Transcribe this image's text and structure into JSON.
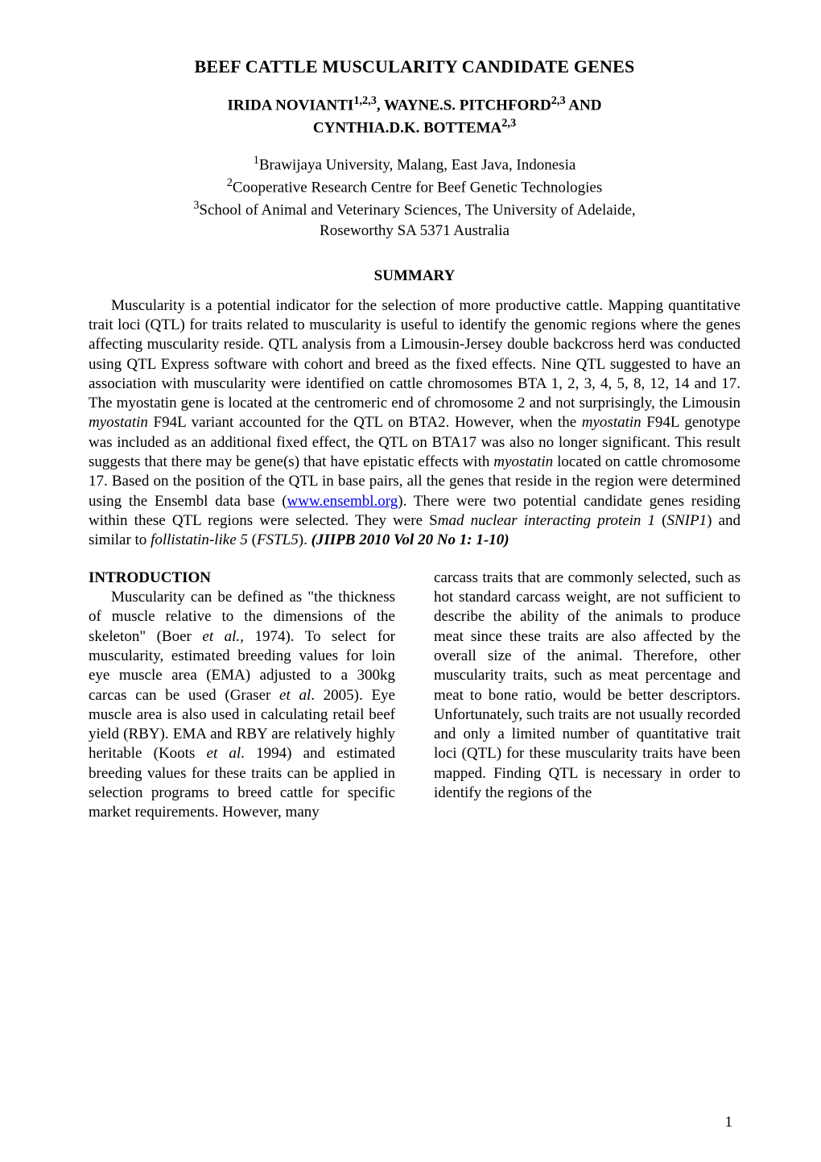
{
  "title": "BEEF CATTLE MUSCULARITY CANDIDATE GENES",
  "authors_line1_pre": "IRIDA NOVIANTI",
  "authors_line1_sup": "1,2,3",
  "authors_line1_mid": ", WAYNE.S. PITCHFORD",
  "authors_line1_sup2": "2,3",
  "authors_line1_post": " AND",
  "authors_line2_pre": "CYNTHIA.D.K. BOTTEMA",
  "authors_line2_sup": "2,3",
  "aff1_sup": "1",
  "aff1_text": "Brawijaya University, Malang, East Java, Indonesia",
  "aff2_sup": "2",
  "aff2_text": "Cooperative Research Centre for Beef Genetic Technologies",
  "aff3_sup": "3",
  "aff3_text": "School of Animal and Veterinary Sciences, The University of Adelaide,",
  "aff4_text": "Roseworthy SA 5371 Australia",
  "summary_heading": "SUMMARY",
  "abstract_1": "Muscularity is a potential indicator for the selection of more productive cattle. Mapping quantitative trait loci (QTL) for traits related to muscularity is useful to identify the genomic regions where the genes affecting muscularity reside. QTL analysis from a Limousin-Jersey double backcross herd was conducted using QTL Express software with cohort and breed as the fixed effects. Nine QTL suggested to have an association with muscularity were identified on cattle chromosomes BTA 1, 2, 3, 4, 5, 8, 12, 14 and 17. The myostatin gene is located at the centromeric end of chromosome 2 and not surprisingly, the Limousin ",
  "abstract_myo1": "myostatin",
  "abstract_2": " F94L variant accounted for the QTL on BTA2. However, when the ",
  "abstract_myo2": "myostatin",
  "abstract_3": " F94L genotype was included as an additional fixed effect, the QTL on BTA17 was also no longer significant. This result suggests that there may be gene(s) that have epistatic effects with ",
  "abstract_myo3": "myostatin",
  "abstract_4": " located on cattle chromosome 17. Based on the position of the QTL in base pairs, all the genes that reside in the region were determined using the Ensembl data base (",
  "abstract_link": "www.ensembl.org",
  "abstract_5": "). There were two potential candidate genes residing within these QTL regions were selected. They were S",
  "abstract_snip_pre": "mad nuclear interacting protein 1",
  "abstract_6": " (",
  "abstract_snip": "SNIP1",
  "abstract_7": ") and similar to ",
  "abstract_fstl_pre": "follistatin-like 5",
  "abstract_8": " (",
  "abstract_fstl": "FSTL5",
  "abstract_9": "). ",
  "abstract_ref": "(JIIPB 2010 Vol 20 No 1: 1-10)",
  "intro_heading": "INTRODUCTION",
  "col1_1": "Muscularity can be defined as \"the thickness of muscle relative to the dimensions of the  skeleton\" (Boer ",
  "col1_boer": "et al.,",
  "col1_2": " 1974). To select for muscularity, estimated breeding values for loin eye muscle area (EMA) adjusted to a 300kg carcas can be used (Graser ",
  "col1_graser": "et al",
  "col1_3": ". 2005). Eye muscle area is also used in calculating retail beef yield (RBY). EMA and RBY are relatively highly heritable (Koots ",
  "col1_koots": "et al",
  "col1_4": ". 1994) and estimated breeding values for these traits can be applied in selection programs to breed cattle for specific market requirements. However, many",
  "col2_1": "carcass traits that are commonly selected, such as hot standard carcass weight, are not sufficient to describe the ability of the animals to produce meat since these traits are also affected by the overall size of the animal. Therefore, other muscularity traits, such as meat percentage and meat to bone ratio, would be better descriptors. Unfortunately, such traits are not usually recorded and only a limited number of quantitative trait loci (QTL) for these muscularity traits have been mapped. Finding QTL is necessary in order to identify the regions of the",
  "page_number": "1"
}
